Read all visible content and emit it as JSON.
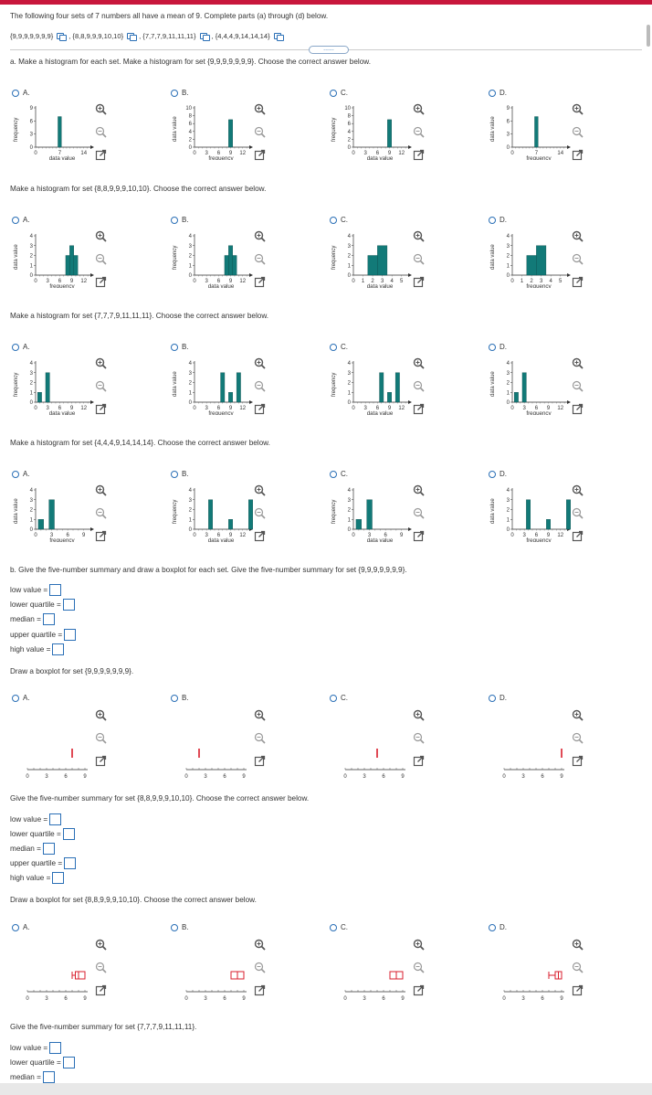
{
  "problem": {
    "intro": "The following four sets of 7 numbers all have a mean of 9. Complete parts (a) through (d) below.",
    "sets": [
      "{9,9,9,9,9,9,9}",
      "{8,8,9,9,9,10,10}",
      "{7,7,7,9,11,11,11}",
      "{4,4,4,9,14,14,14}"
    ],
    "more_label": "......"
  },
  "part_a": {
    "prompt_1": "a. Make a histogram for each set. Make a histogram for set {9,9,9,9,9,9,9}. Choose the correct answer below.",
    "prompt_2": "Make a histogram for set {8,8,9,9,9,10,10}. Choose the correct answer below.",
    "prompt_3": "Make a histogram for set {7,7,7,9,11,11,11}. Choose the correct answer below.",
    "prompt_4": "Make a histogram for set {4,4,4,9,14,14,14}. Choose the correct answer below."
  },
  "options": [
    "A.",
    "B.",
    "C.",
    "D."
  ],
  "labels": {
    "frequency": "frequency",
    "data_value": "data value"
  },
  "histograms": {
    "q1": [
      {
        "xlabel": "data value",
        "ylabel": "frequency",
        "xticks": [
          "0",
          "7",
          "14"
        ],
        "yticks": [
          "0",
          "3",
          "6",
          "9"
        ],
        "bars": [
          {
            "x": 7,
            "h": 7
          }
        ]
      },
      {
        "xlabel": "frequency",
        "ylabel": "data value",
        "xticks": [
          "0",
          "3",
          "6",
          "9",
          "12"
        ],
        "yticks": [
          "0",
          "2",
          "4",
          "6",
          "8",
          "10"
        ],
        "bars": [
          {
            "x": 9,
            "h": 7
          }
        ]
      },
      {
        "xlabel": "data value",
        "ylabel": "frequency",
        "xticks": [
          "0",
          "3",
          "6",
          "9",
          "12"
        ],
        "yticks": [
          "0",
          "2",
          "4",
          "6",
          "8",
          "10"
        ],
        "bars": [
          {
            "x": 9,
            "h": 7
          }
        ]
      },
      {
        "xlabel": "frequency",
        "ylabel": "data value",
        "xticks": [
          "0",
          "7",
          "14"
        ],
        "yticks": [
          "0",
          "3",
          "6",
          "9"
        ],
        "bars": [
          {
            "x": 7,
            "h": 7
          }
        ]
      }
    ],
    "q2": [
      {
        "xlabel": "frequency",
        "ylabel": "data value",
        "xticks": [
          "0",
          "3",
          "6",
          "9",
          "12"
        ],
        "yticks": [
          "0",
          "1",
          "2",
          "3",
          "4"
        ],
        "bars": [
          {
            "x": 8,
            "h": 2
          },
          {
            "x": 9,
            "h": 3
          },
          {
            "x": 10,
            "h": 2
          }
        ]
      },
      {
        "xlabel": "data value",
        "ylabel": "frequency",
        "xticks": [
          "0",
          "3",
          "6",
          "9",
          "12"
        ],
        "yticks": [
          "0",
          "1",
          "2",
          "3",
          "4"
        ],
        "bars": [
          {
            "x": 8,
            "h": 2
          },
          {
            "x": 9,
            "h": 3
          },
          {
            "x": 10,
            "h": 2
          }
        ]
      },
      {
        "xlabel": "data value",
        "ylabel": "frequency",
        "xticks": [
          "0",
          "1",
          "2",
          "3",
          "4",
          "5"
        ],
        "yticks": [
          "0",
          "1",
          "2",
          "3",
          "4"
        ],
        "bars": [
          {
            "x": 2,
            "h": 2
          },
          {
            "x": 3,
            "h": 3
          }
        ]
      },
      {
        "xlabel": "frequency",
        "ylabel": "data value",
        "xticks": [
          "0",
          "1",
          "2",
          "3",
          "4",
          "5"
        ],
        "yticks": [
          "0",
          "1",
          "2",
          "3",
          "4"
        ],
        "bars": [
          {
            "x": 2,
            "h": 2
          },
          {
            "x": 3,
            "h": 3
          }
        ]
      }
    ],
    "q3": [
      {
        "xlabel": "data value",
        "ylabel": "frequency",
        "xticks": [
          "0",
          "3",
          "6",
          "9",
          "12"
        ],
        "yticks": [
          "0",
          "1",
          "2",
          "3",
          "4"
        ],
        "bars": [
          {
            "x": 1,
            "h": 1
          },
          {
            "x": 3,
            "h": 3
          }
        ]
      },
      {
        "xlabel": "frequency",
        "ylabel": "data value",
        "xticks": [
          "0",
          "3",
          "6",
          "9",
          "12"
        ],
        "yticks": [
          "0",
          "1",
          "2",
          "3",
          "4"
        ],
        "bars": [
          {
            "x": 7,
            "h": 3
          },
          {
            "x": 9,
            "h": 1
          },
          {
            "x": 11,
            "h": 3
          }
        ]
      },
      {
        "xlabel": "data value",
        "ylabel": "frequency",
        "xticks": [
          "0",
          "3",
          "6",
          "9",
          "12"
        ],
        "yticks": [
          "0",
          "1",
          "2",
          "3",
          "4"
        ],
        "bars": [
          {
            "x": 7,
            "h": 3
          },
          {
            "x": 9,
            "h": 1
          },
          {
            "x": 11,
            "h": 3
          }
        ]
      },
      {
        "xlabel": "frequency",
        "ylabel": "data value",
        "xticks": [
          "0",
          "3",
          "6",
          "9",
          "12"
        ],
        "yticks": [
          "0",
          "1",
          "2",
          "3",
          "4"
        ],
        "bars": [
          {
            "x": 1,
            "h": 1
          },
          {
            "x": 3,
            "h": 3
          }
        ]
      }
    ],
    "q4": [
      {
        "xlabel": "frequency",
        "ylabel": "data value",
        "xticks": [
          "0",
          "3",
          "6",
          "9"
        ],
        "yticks": [
          "0",
          "1",
          "2",
          "3",
          "4"
        ],
        "bars": [
          {
            "x": 1,
            "h": 1
          },
          {
            "x": 3,
            "h": 3
          }
        ]
      },
      {
        "xlabel": "data value",
        "ylabel": "frequency",
        "xticks": [
          "0",
          "3",
          "6",
          "9",
          "12"
        ],
        "yticks": [
          "0",
          "1",
          "2",
          "3",
          "4"
        ],
        "bars": [
          {
            "x": 4,
            "h": 3
          },
          {
            "x": 9,
            "h": 1
          },
          {
            "x": 14,
            "h": 3
          }
        ]
      },
      {
        "xlabel": "data value",
        "ylabel": "frequency",
        "xticks": [
          "0",
          "3",
          "6",
          "9"
        ],
        "yticks": [
          "0",
          "1",
          "2",
          "3",
          "4"
        ],
        "bars": [
          {
            "x": 1,
            "h": 1
          },
          {
            "x": 3,
            "h": 3
          }
        ]
      },
      {
        "xlabel": "frequency",
        "ylabel": "data value",
        "xticks": [
          "0",
          "3",
          "6",
          "9",
          "12"
        ],
        "yticks": [
          "0",
          "1",
          "2",
          "3",
          "4"
        ],
        "bars": [
          {
            "x": 4,
            "h": 3
          },
          {
            "x": 9,
            "h": 1
          },
          {
            "x": 14,
            "h": 3
          }
        ]
      }
    ]
  },
  "part_b": {
    "prompt_1": "b. Give the five-number summary and draw a boxplot for each set. Give the five-number summary for set {9,9,9,9,9,9,9}.",
    "prompt_2": "Give the five-number summary for set {8,8,9,9,9,10,10}. Choose the correct answer below.",
    "prompt_3": "Give the five-number summary for set {7,7,7,9,11,11,11}.",
    "fields": {
      "low": "low value =",
      "lq": "lower quartile =",
      "median": "median =",
      "uq": "upper quartile =",
      "high": "high value ="
    },
    "draw_1": "Draw a boxplot for set {9,9,9,9,9,9,9}.",
    "draw_2": "Draw a boxplot for set {8,8,9,9,9,10,10}. Choose the correct answer below."
  },
  "boxplots": {
    "ticks": [
      "0",
      "3",
      "6",
      "9"
    ],
    "set1": [
      {
        "low": 7,
        "lq": 7,
        "med": 7,
        "uq": 7,
        "high": 7
      },
      {
        "low": 2,
        "lq": 2,
        "med": 2,
        "uq": 2,
        "high": 2
      },
      {
        "low": 5,
        "lq": 5,
        "med": 5,
        "uq": 5,
        "high": 5
      },
      {
        "low": 9,
        "lq": 9,
        "med": 9,
        "uq": 9,
        "high": 9
      }
    ],
    "set2": [
      {
        "low": 7,
        "lq": 7.5,
        "med": 8,
        "uq": 9,
        "high": 9
      },
      {
        "low": 7,
        "lq": 7,
        "med": 8,
        "uq": 9,
        "high": 9
      },
      {
        "low": 7,
        "lq": 7,
        "med": 8,
        "uq": 9,
        "high": 9
      },
      {
        "low": 7,
        "lq": 8,
        "med": 8.5,
        "uq": 9,
        "high": 9
      }
    ]
  },
  "colors": {
    "accent": "#2a6fb6",
    "bar": "#127a78",
    "box": "#d81e2c",
    "brand": "#c8173c"
  }
}
